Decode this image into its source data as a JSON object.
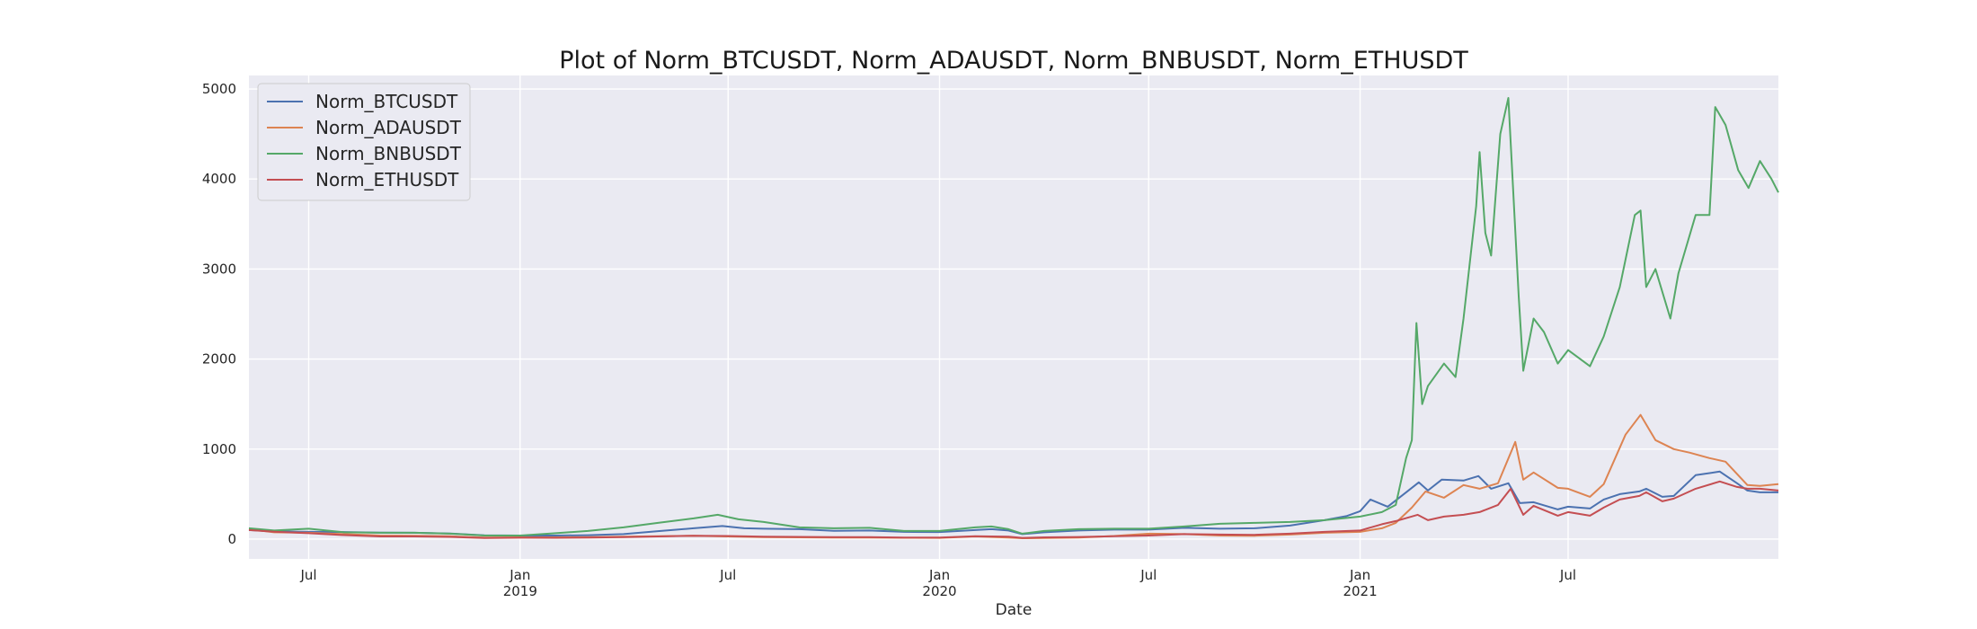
{
  "chart_data": {
    "type": "line",
    "title": "Plot of Norm_BTCUSDT, Norm_ADAUSDT, Norm_BNBUSDT, Norm_ETHUSDT",
    "xlabel": "Date",
    "ylabel": "",
    "xlim": [
      "2018-05-10",
      "2021-12-31"
    ],
    "ylim": [
      -220,
      5150
    ],
    "grid": true,
    "legend_position": "upper-left",
    "x_ticks": [
      {
        "date": "2018-07-01",
        "label": "Jul",
        "sublabel": ""
      },
      {
        "date": "2019-01-01",
        "label": "Jan",
        "sublabel": "2019"
      },
      {
        "date": "2019-07-01",
        "label": "Jul",
        "sublabel": ""
      },
      {
        "date": "2020-01-01",
        "label": "Jan",
        "sublabel": "2020"
      },
      {
        "date": "2020-07-01",
        "label": "Jul",
        "sublabel": ""
      },
      {
        "date": "2021-01-01",
        "label": "Jan",
        "sublabel": "2021"
      },
      {
        "date": "2021-07-01",
        "label": "Jul",
        "sublabel": ""
      }
    ],
    "y_ticks": [
      0,
      1000,
      2000,
      3000,
      4000,
      5000
    ],
    "series": [
      {
        "name": "Norm_BTCUSDT",
        "color": "#4c72b0",
        "points": [
          [
            "2018-05-10",
            100
          ],
          [
            "2018-06-01",
            85
          ],
          [
            "2018-07-01",
            80
          ],
          [
            "2018-08-01",
            78
          ],
          [
            "2018-09-01",
            72
          ],
          [
            "2018-10-01",
            70
          ],
          [
            "2018-11-01",
            62
          ],
          [
            "2018-12-01",
            42
          ],
          [
            "2019-01-01",
            40
          ],
          [
            "2019-02-01",
            40
          ],
          [
            "2019-03-01",
            44
          ],
          [
            "2019-04-01",
            55
          ],
          [
            "2019-05-01",
            88
          ],
          [
            "2019-06-01",
            120
          ],
          [
            "2019-06-26",
            145
          ],
          [
            "2019-07-15",
            120
          ],
          [
            "2019-08-01",
            115
          ],
          [
            "2019-09-01",
            110
          ],
          [
            "2019-10-01",
            92
          ],
          [
            "2019-11-01",
            95
          ],
          [
            "2019-12-01",
            80
          ],
          [
            "2020-01-01",
            78
          ],
          [
            "2020-02-01",
            100
          ],
          [
            "2020-02-15",
            110
          ],
          [
            "2020-03-01",
            95
          ],
          [
            "2020-03-13",
            55
          ],
          [
            "2020-04-01",
            75
          ],
          [
            "2020-05-01",
            95
          ],
          [
            "2020-06-01",
            105
          ],
          [
            "2020-07-01",
            105
          ],
          [
            "2020-08-01",
            125
          ],
          [
            "2020-09-01",
            115
          ],
          [
            "2020-10-01",
            120
          ],
          [
            "2020-11-01",
            150
          ],
          [
            "2020-12-01",
            210
          ],
          [
            "2020-12-20",
            255
          ],
          [
            "2021-01-01",
            310
          ],
          [
            "2021-01-10",
            440
          ],
          [
            "2021-01-25",
            360
          ],
          [
            "2021-02-10",
            520
          ],
          [
            "2021-02-21",
            630
          ],
          [
            "2021-03-01",
            540
          ],
          [
            "2021-03-13",
            660
          ],
          [
            "2021-04-01",
            650
          ],
          [
            "2021-04-14",
            700
          ],
          [
            "2021-04-25",
            560
          ],
          [
            "2021-05-10",
            620
          ],
          [
            "2021-05-20",
            400
          ],
          [
            "2021-06-01",
            410
          ],
          [
            "2021-06-22",
            330
          ],
          [
            "2021-07-01",
            360
          ],
          [
            "2021-07-20",
            340
          ],
          [
            "2021-08-01",
            440
          ],
          [
            "2021-08-15",
            500
          ],
          [
            "2021-09-01",
            530
          ],
          [
            "2021-09-07",
            560
          ],
          [
            "2021-09-21",
            470
          ],
          [
            "2021-10-01",
            480
          ],
          [
            "2021-10-20",
            710
          ],
          [
            "2021-11-10",
            750
          ],
          [
            "2021-11-25",
            620
          ],
          [
            "2021-12-04",
            540
          ],
          [
            "2021-12-15",
            520
          ],
          [
            "2021-12-31",
            520
          ]
        ]
      },
      {
        "name": "Norm_ADAUSDT",
        "color": "#dd8452",
        "points": [
          [
            "2018-05-10",
            110
          ],
          [
            "2018-06-01",
            75
          ],
          [
            "2018-07-01",
            70
          ],
          [
            "2018-08-01",
            55
          ],
          [
            "2018-09-01",
            40
          ],
          [
            "2018-10-01",
            38
          ],
          [
            "2018-11-01",
            32
          ],
          [
            "2018-12-01",
            18
          ],
          [
            "2019-01-01",
            20
          ],
          [
            "2019-02-01",
            20
          ],
          [
            "2019-03-01",
            22
          ],
          [
            "2019-04-01",
            28
          ],
          [
            "2019-05-01",
            32
          ],
          [
            "2019-06-01",
            38
          ],
          [
            "2019-07-01",
            30
          ],
          [
            "2019-08-01",
            22
          ],
          [
            "2019-09-01",
            20
          ],
          [
            "2019-10-01",
            18
          ],
          [
            "2019-11-01",
            18
          ],
          [
            "2019-12-01",
            15
          ],
          [
            "2020-01-01",
            14
          ],
          [
            "2020-02-01",
            30
          ],
          [
            "2020-03-01",
            18
          ],
          [
            "2020-03-13",
            10
          ],
          [
            "2020-04-01",
            12
          ],
          [
            "2020-05-01",
            18
          ],
          [
            "2020-06-01",
            35
          ],
          [
            "2020-07-01",
            60
          ],
          [
            "2020-08-01",
            55
          ],
          [
            "2020-09-01",
            40
          ],
          [
            "2020-10-01",
            38
          ],
          [
            "2020-11-01",
            50
          ],
          [
            "2020-12-01",
            70
          ],
          [
            "2021-01-01",
            80
          ],
          [
            "2021-01-20",
            120
          ],
          [
            "2021-02-01",
            180
          ],
          [
            "2021-02-15",
            350
          ],
          [
            "2021-02-27",
            530
          ],
          [
            "2021-03-15",
            460
          ],
          [
            "2021-04-01",
            600
          ],
          [
            "2021-04-15",
            560
          ],
          [
            "2021-05-01",
            620
          ],
          [
            "2021-05-16",
            1080
          ],
          [
            "2021-05-23",
            660
          ],
          [
            "2021-06-01",
            740
          ],
          [
            "2021-06-22",
            570
          ],
          [
            "2021-07-01",
            560
          ],
          [
            "2021-07-20",
            470
          ],
          [
            "2021-08-01",
            610
          ],
          [
            "2021-08-20",
            1160
          ],
          [
            "2021-09-02",
            1380
          ],
          [
            "2021-09-15",
            1100
          ],
          [
            "2021-10-01",
            1000
          ],
          [
            "2021-10-15",
            960
          ],
          [
            "2021-11-01",
            900
          ],
          [
            "2021-11-15",
            860
          ],
          [
            "2021-12-04",
            600
          ],
          [
            "2021-12-15",
            590
          ],
          [
            "2021-12-31",
            610
          ]
        ]
      },
      {
        "name": "Norm_BNBUSDT",
        "color": "#55a868",
        "points": [
          [
            "2018-05-10",
            120
          ],
          [
            "2018-06-01",
            95
          ],
          [
            "2018-07-01",
            115
          ],
          [
            "2018-08-01",
            75
          ],
          [
            "2018-09-01",
            70
          ],
          [
            "2018-10-01",
            70
          ],
          [
            "2018-11-01",
            60
          ],
          [
            "2018-12-01",
            40
          ],
          [
            "2019-01-01",
            40
          ],
          [
            "2019-02-01",
            65
          ],
          [
            "2019-03-01",
            90
          ],
          [
            "2019-04-01",
            130
          ],
          [
            "2019-05-01",
            180
          ],
          [
            "2019-06-01",
            230
          ],
          [
            "2019-06-22",
            270
          ],
          [
            "2019-07-10",
            220
          ],
          [
            "2019-08-01",
            190
          ],
          [
            "2019-09-01",
            130
          ],
          [
            "2019-10-01",
            120
          ],
          [
            "2019-11-01",
            125
          ],
          [
            "2019-12-01",
            90
          ],
          [
            "2020-01-01",
            90
          ],
          [
            "2020-02-01",
            130
          ],
          [
            "2020-02-15",
            140
          ],
          [
            "2020-03-01",
            110
          ],
          [
            "2020-03-13",
            60
          ],
          [
            "2020-04-01",
            90
          ],
          [
            "2020-05-01",
            110
          ],
          [
            "2020-06-01",
            115
          ],
          [
            "2020-07-01",
            115
          ],
          [
            "2020-08-01",
            140
          ],
          [
            "2020-09-01",
            170
          ],
          [
            "2020-10-01",
            180
          ],
          [
            "2020-11-01",
            190
          ],
          [
            "2020-12-01",
            210
          ],
          [
            "2021-01-01",
            250
          ],
          [
            "2021-01-20",
            300
          ],
          [
            "2021-02-01",
            380
          ],
          [
            "2021-02-10",
            900
          ],
          [
            "2021-02-15",
            1100
          ],
          [
            "2021-02-19",
            2400
          ],
          [
            "2021-02-24",
            1500
          ],
          [
            "2021-03-01",
            1700
          ],
          [
            "2021-03-15",
            1950
          ],
          [
            "2021-03-25",
            1800
          ],
          [
            "2021-04-01",
            2450
          ],
          [
            "2021-04-12",
            3700
          ],
          [
            "2021-04-15",
            4300
          ],
          [
            "2021-04-20",
            3400
          ],
          [
            "2021-04-25",
            3150
          ],
          [
            "2021-05-03",
            4500
          ],
          [
            "2021-05-10",
            4900
          ],
          [
            "2021-05-12",
            4400
          ],
          [
            "2021-05-19",
            2700
          ],
          [
            "2021-05-23",
            1870
          ],
          [
            "2021-06-01",
            2450
          ],
          [
            "2021-06-10",
            2300
          ],
          [
            "2021-06-22",
            1950
          ],
          [
            "2021-07-01",
            2100
          ],
          [
            "2021-07-20",
            1920
          ],
          [
            "2021-08-01",
            2250
          ],
          [
            "2021-08-15",
            2800
          ],
          [
            "2021-08-28",
            3600
          ],
          [
            "2021-09-02",
            3650
          ],
          [
            "2021-09-07",
            2800
          ],
          [
            "2021-09-15",
            3000
          ],
          [
            "2021-09-28",
            2450
          ],
          [
            "2021-10-05",
            2950
          ],
          [
            "2021-10-20",
            3600
          ],
          [
            "2021-11-01",
            3600
          ],
          [
            "2021-11-06",
            4800
          ],
          [
            "2021-11-15",
            4600
          ],
          [
            "2021-11-26",
            4100
          ],
          [
            "2021-12-05",
            3900
          ],
          [
            "2021-12-15",
            4200
          ],
          [
            "2021-12-25",
            4000
          ],
          [
            "2021-12-31",
            3850
          ]
        ]
      },
      {
        "name": "Norm_ETHUSDT",
        "color": "#c44e52",
        "points": [
          [
            "2018-05-10",
            100
          ],
          [
            "2018-06-01",
            82
          ],
          [
            "2018-07-01",
            65
          ],
          [
            "2018-08-01",
            45
          ],
          [
            "2018-09-01",
            30
          ],
          [
            "2018-10-01",
            30
          ],
          [
            "2018-11-01",
            25
          ],
          [
            "2018-12-01",
            12
          ],
          [
            "2019-01-01",
            16
          ],
          [
            "2019-02-01",
            15
          ],
          [
            "2019-03-01",
            18
          ],
          [
            "2019-04-01",
            22
          ],
          [
            "2019-05-01",
            30
          ],
          [
            "2019-06-01",
            38
          ],
          [
            "2019-07-01",
            35
          ],
          [
            "2019-08-01",
            28
          ],
          [
            "2019-09-01",
            25
          ],
          [
            "2019-10-01",
            23
          ],
          [
            "2019-11-01",
            22
          ],
          [
            "2019-12-01",
            17
          ],
          [
            "2020-01-01",
            17
          ],
          [
            "2020-02-01",
            32
          ],
          [
            "2020-03-01",
            28
          ],
          [
            "2020-03-13",
            14
          ],
          [
            "2020-04-01",
            20
          ],
          [
            "2020-05-01",
            24
          ],
          [
            "2020-06-01",
            32
          ],
          [
            "2020-07-01",
            40
          ],
          [
            "2020-08-01",
            55
          ],
          [
            "2020-09-01",
            50
          ],
          [
            "2020-10-01",
            48
          ],
          [
            "2020-11-01",
            60
          ],
          [
            "2020-12-01",
            80
          ],
          [
            "2021-01-01",
            95
          ],
          [
            "2021-01-20",
            165
          ],
          [
            "2021-02-01",
            200
          ],
          [
            "2021-02-20",
            270
          ],
          [
            "2021-03-01",
            210
          ],
          [
            "2021-03-15",
            250
          ],
          [
            "2021-04-01",
            270
          ],
          [
            "2021-04-15",
            300
          ],
          [
            "2021-05-01",
            380
          ],
          [
            "2021-05-12",
            560
          ],
          [
            "2021-05-23",
            270
          ],
          [
            "2021-06-01",
            370
          ],
          [
            "2021-06-22",
            260
          ],
          [
            "2021-07-01",
            300
          ],
          [
            "2021-07-20",
            260
          ],
          [
            "2021-08-01",
            350
          ],
          [
            "2021-08-15",
            440
          ],
          [
            "2021-09-01",
            480
          ],
          [
            "2021-09-07",
            520
          ],
          [
            "2021-09-21",
            420
          ],
          [
            "2021-10-01",
            450
          ],
          [
            "2021-10-20",
            560
          ],
          [
            "2021-11-10",
            640
          ],
          [
            "2021-11-25",
            580
          ],
          [
            "2021-12-04",
            560
          ],
          [
            "2021-12-15",
            560
          ],
          [
            "2021-12-31",
            540
          ]
        ]
      }
    ]
  }
}
